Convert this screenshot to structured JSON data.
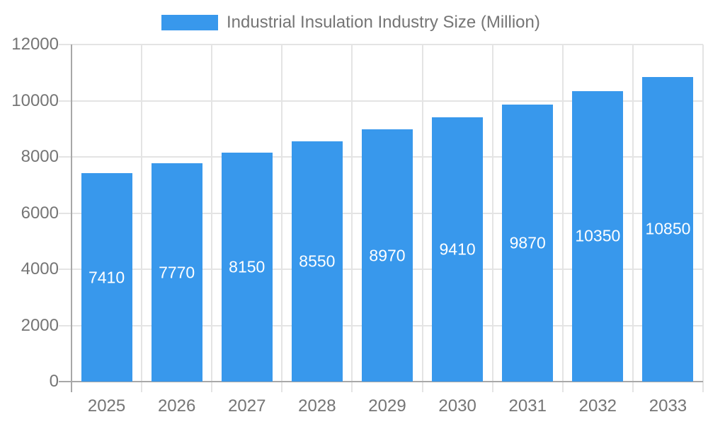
{
  "legend": {
    "label": "Industrial Insulation Industry Size (Million)",
    "swatch_color": "#3898ec"
  },
  "chart_data": {
    "type": "bar",
    "title": "Industrial Insulation Industry Size (Million)",
    "categories": [
      "2025",
      "2026",
      "2027",
      "2028",
      "2029",
      "2030",
      "2031",
      "2032",
      "2033"
    ],
    "values": [
      7410,
      7770,
      8150,
      8550,
      8970,
      9410,
      9870,
      10350,
      10850
    ],
    "value_labels": [
      "7410",
      "7770",
      "8150",
      "8550",
      "8970",
      "9410",
      "9870",
      "10350",
      "10850"
    ],
    "xlabel": "",
    "ylabel": "",
    "ylim": [
      0,
      12000
    ],
    "yticks": [
      0,
      2000,
      4000,
      6000,
      8000,
      10000,
      12000
    ],
    "grid": true,
    "legend_position": "top",
    "bar_color": "#3898ec",
    "value_label_color": "#ffffff",
    "axis_text_color": "#757575",
    "axis_line_color": "#a8a8a8",
    "gridline_color": "#e4e4e4"
  }
}
